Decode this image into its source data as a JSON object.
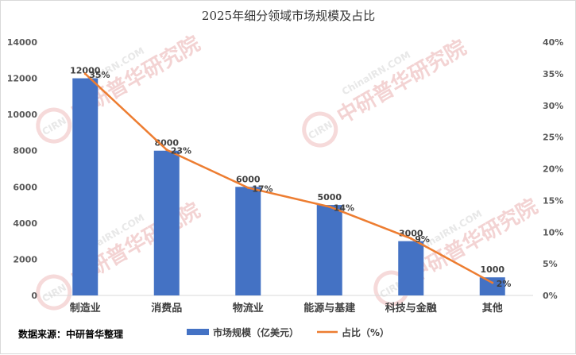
{
  "chart_data": {
    "type": "bar",
    "title": "2025年细分领域市场规模及占比",
    "categories": [
      "制造业",
      "消费品",
      "物流业",
      "能源与基建",
      "科技与金融",
      "其他"
    ],
    "series": [
      {
        "name": "市场规模（亿美元）",
        "type": "bar",
        "axis": "left",
        "values": [
          12000,
          8000,
          6000,
          5000,
          3000,
          1000
        ],
        "labels": [
          "12000",
          "8000",
          "6000",
          "5000",
          "3000",
          "1000"
        ],
        "color": "#4472c4"
      },
      {
        "name": "占比（%）",
        "type": "line",
        "axis": "right",
        "values": [
          35,
          23,
          17,
          14,
          9,
          2
        ],
        "labels": [
          "35%",
          "23%",
          "17%",
          "14%",
          "9%",
          "2%"
        ],
        "color": "#ed7d31"
      }
    ],
    "ylim": [
      0,
      14000
    ],
    "y_ticks": [
      "0",
      "2000",
      "4000",
      "6000",
      "8000",
      "10000",
      "12000",
      "14000"
    ],
    "y2lim": [
      0,
      40
    ],
    "y2_ticks": [
      "0%",
      "5%",
      "10%",
      "15%",
      "20%",
      "25%",
      "30%",
      "35%",
      "40%"
    ],
    "grid": false,
    "legend_position": "bottom"
  },
  "source_note": "数据来源：中研普华整理",
  "watermark": {
    "text": "中研普华研究院",
    "sub": "ChinaIRN.COM",
    "logo": "CIRN"
  }
}
